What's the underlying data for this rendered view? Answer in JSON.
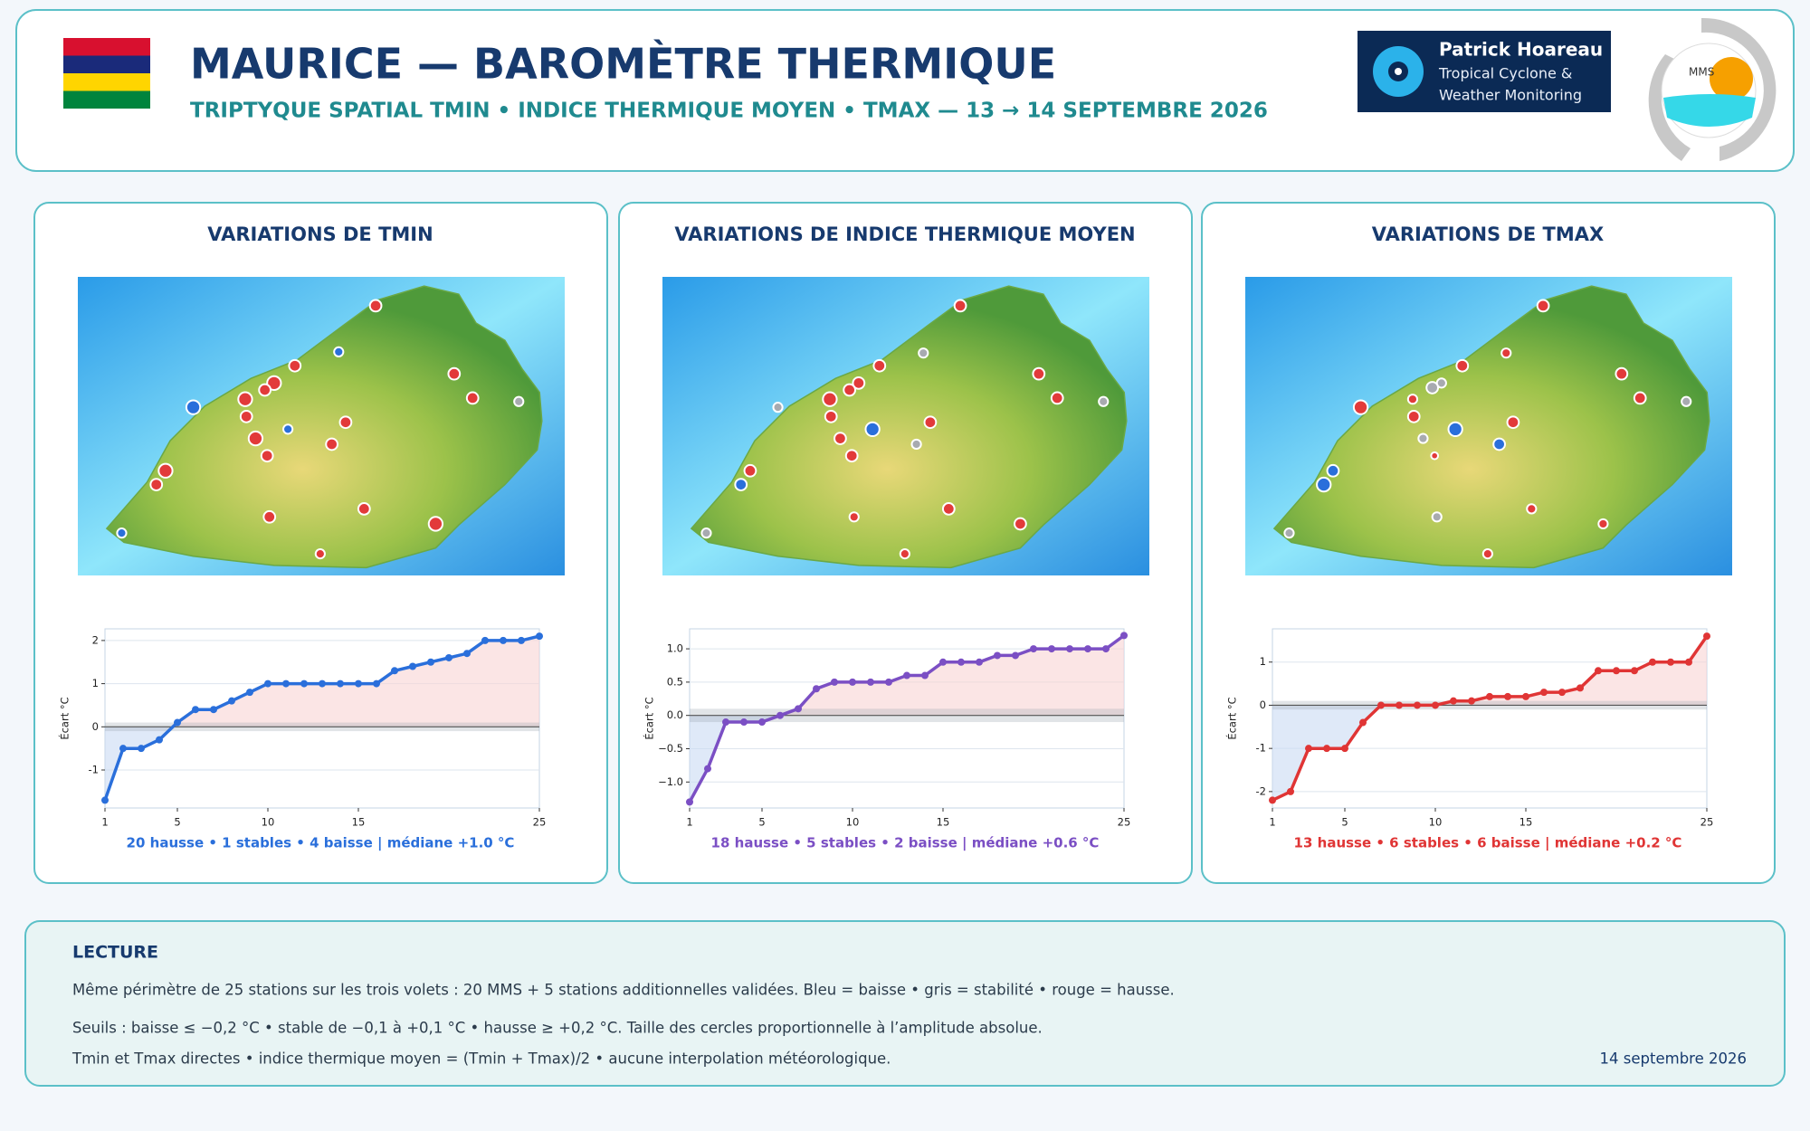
{
  "header": {
    "title": "MAURICE — BAROMÈTRE THERMIQUE",
    "subtitle": "TRIPTYQUE SPATIAL TMIN • INDICE THERMIQUE MOYEN • TMAX  —  13 → 14 SEPTEMBRE 2026",
    "logo_lines": [
      "Patrick Hoareau",
      "Tropical Cyclone &",
      "Weather Monitoring"
    ],
    "mms": "MMS"
  },
  "chart_data": [
    {
      "type": "line",
      "title": "VARIATIONS DE TMIN",
      "ylabel": "Écart °C",
      "color": "#2a6fdb",
      "x": [
        1,
        2,
        3,
        4,
        5,
        6,
        7,
        8,
        9,
        10,
        11,
        12,
        13,
        14,
        15,
        16,
        17,
        18,
        19,
        20,
        21,
        22,
        23,
        24,
        25
      ],
      "values": [
        -1.7,
        -0.5,
        -0.5,
        -0.3,
        0.1,
        0.4,
        0.4,
        0.6,
        0.8,
        1.0,
        1.0,
        1.0,
        1.0,
        1.0,
        1.0,
        1.0,
        1.3,
        1.4,
        1.5,
        1.6,
        1.7,
        2.0,
        2.0,
        2.0,
        2.1
      ],
      "xlim": [
        1,
        25
      ],
      "xticks": [
        1,
        5,
        10,
        15,
        25
      ],
      "ylim": [
        -1.88,
        2.27
      ],
      "yticks": [
        -1,
        0,
        1,
        2
      ],
      "band": [
        -0.1,
        0.1
      ],
      "grid": true,
      "summary": "20 hausse • 1 stables • 4 baisse  |  médiane +1.0 °C"
    },
    {
      "type": "line",
      "title": "VARIATIONS DE INDICE THERMIQUE MOYEN",
      "ylabel": "Écart °C",
      "color": "#7b4fc4",
      "x": [
        1,
        2,
        3,
        4,
        5,
        6,
        7,
        8,
        9,
        10,
        11,
        12,
        13,
        14,
        15,
        16,
        17,
        18,
        19,
        20,
        21,
        22,
        23,
        24,
        25
      ],
      "values": [
        -1.3,
        -0.8,
        -0.1,
        -0.1,
        -0.1,
        0.0,
        0.1,
        0.4,
        0.5,
        0.5,
        0.5,
        0.5,
        0.6,
        0.6,
        0.8,
        0.8,
        0.8,
        0.9,
        0.9,
        1.0,
        1.0,
        1.0,
        1.0,
        1.0,
        1.2
      ],
      "xlim": [
        1,
        25
      ],
      "xticks": [
        1,
        5,
        10,
        15,
        25
      ],
      "ylim": [
        -1.39,
        1.3
      ],
      "yticks": [
        {
          "value": -1,
          "label": "−1.0"
        },
        {
          "value": -0.5,
          "label": "−0.5"
        },
        {
          "value": 0,
          "label": "0.0"
        },
        {
          "value": 0.5,
          "label": "0.5"
        },
        {
          "value": 1,
          "label": "1.0"
        }
      ],
      "band": [
        -0.1,
        0.1
      ],
      "grid": true,
      "summary": "18 hausse • 5 stables • 2 baisse  |  médiane +0.6 °C"
    },
    {
      "type": "line",
      "title": "VARIATIONS DE TMAX",
      "ylabel": "Écart °C",
      "color": "#e03535",
      "x": [
        1,
        2,
        3,
        4,
        5,
        6,
        7,
        8,
        9,
        10,
        11,
        12,
        13,
        14,
        15,
        16,
        17,
        18,
        19,
        20,
        21,
        22,
        23,
        24,
        25
      ],
      "values": [
        -2.2,
        -2.0,
        -1.0,
        -1.0,
        -1.0,
        -0.4,
        0.0,
        0.0,
        0.0,
        0.0,
        0.1,
        0.1,
        0.2,
        0.2,
        0.2,
        0.3,
        0.3,
        0.4,
        0.8,
        0.8,
        0.8,
        1.0,
        1.0,
        1.0,
        1.6
      ],
      "xlim": [
        1,
        25
      ],
      "xticks": [
        1,
        5,
        10,
        15,
        25
      ],
      "ylim": [
        -2.38,
        1.77
      ],
      "yticks": [
        -2,
        -1,
        0,
        1
      ],
      "band": [
        -0.1,
        0.1
      ],
      "grid": true,
      "summary": "13 hausse • 6 stables • 6 baisse  |  médiane +0.2 °C"
    }
  ],
  "lecture": {
    "heading": "LECTURE",
    "lines": [
      "Même périmètre de 25 stations sur les trois volets : 20 MMS + 5 stations additionnelles validées. Bleu = baisse • gris = stabilité • rouge = hausse.",
      "Seuils : baisse ≤ −0,2 °C • stable de −0,1 à +0,1 °C • hausse ≥ +0,2 °C. Taille des cercles proportionnelle à l’amplitude absolue.",
      "Tmin et Tmax directes • indice thermique moyen = (Tmin + Tmax)/2 • aucune interpolation météorologique."
    ],
    "date": "14 septembre 2026"
  }
}
